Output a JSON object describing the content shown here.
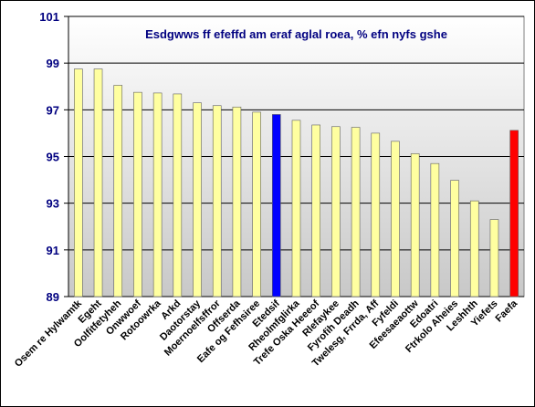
{
  "chart_data": {
    "type": "bar",
    "title": "Esdgwws ff efeffd am eraf aglal roea, % efn nyfs gshe",
    "xlabel": "",
    "ylabel": "",
    "ylim": [
      89,
      101
    ],
    "yticks": [
      89,
      91,
      93,
      95,
      97,
      99,
      101
    ],
    "grid": true,
    "legend": "none",
    "categories": [
      "Osem re Hylwamtk",
      "Egeht",
      "Oolfitfetyheh",
      "Onwwoef",
      "Rotoowrka",
      "Arkd",
      "Daotorstay",
      "Moernoelfsffror",
      "Offserda",
      "Eafe og Fefhsiree",
      "Etedsif",
      "Rheolmfglirka",
      "Trefe Oska Heeeof",
      "Rlefaykee",
      "Fyrofih Deadh",
      "Twelesg, Frrda, Aff",
      "Fyfeldi",
      "Efeesaeaottw",
      "Edoatri",
      "Ftrkolo Aheies",
      "Leshhth",
      "Yiefets",
      "Faefa"
    ],
    "values": [
      98.75,
      98.75,
      98.05,
      97.75,
      97.72,
      97.68,
      97.3,
      97.18,
      97.12,
      96.9,
      96.8,
      96.55,
      96.35,
      96.28,
      96.25,
      96.0,
      95.65,
      95.12,
      94.7,
      93.98,
      93.1,
      92.3,
      96.12
    ],
    "colors": {
      "default": "#FFFFA0",
      "highlight_blue": "#0000FF",
      "highlight_red": "#FF0000",
      "plot_top": "#FFFFFF",
      "plot_bottom": "#C8C8C8",
      "gridline": "#000000",
      "tick_text": "#000080",
      "title_text": "#000080"
    },
    "highlights": {
      "Etedsif": "highlight_blue",
      "Faefa": "highlight_red"
    }
  }
}
